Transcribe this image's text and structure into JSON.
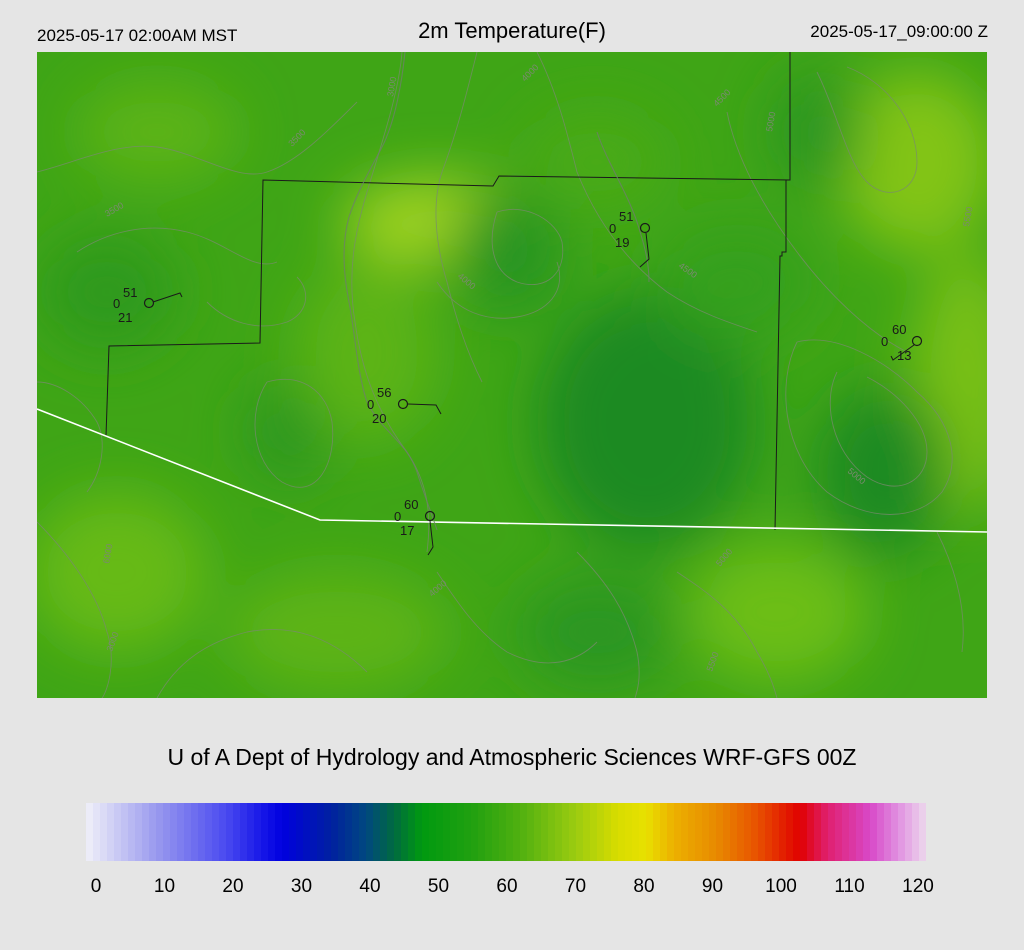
{
  "header": {
    "local_time": "2025-05-17 02:00AM MST",
    "title": "2m Temperature(F)",
    "valid_time": "2025-05-17_09:00:00 Z"
  },
  "map": {
    "variable": "2m Temperature",
    "units": "F",
    "field_colors": [
      "#1a8a1a",
      "#35a01a",
      "#4aae14",
      "#6cbc10",
      "#8ccc1c"
    ],
    "elevation_contour_labels": [
      "3000",
      "3500",
      "4000",
      "4500",
      "5000",
      "5500",
      "6000"
    ],
    "stations": [
      {
        "id": "st1",
        "temp": "51",
        "cloud": "0",
        "dew": "21"
      },
      {
        "id": "st2",
        "temp": "51",
        "cloud": "0",
        "dew": "19"
      },
      {
        "id": "st3",
        "temp": "56",
        "cloud": "0",
        "dew": "20"
      },
      {
        "id": "st4",
        "temp": "60",
        "cloud": "0",
        "dew": "17"
      },
      {
        "id": "st5",
        "temp": "60",
        "cloud": "0",
        "dew": "13"
      }
    ]
  },
  "credit": "U of A Dept of Hydrology and Atmospheric Sciences WRF-GFS 00Z",
  "colorbar": {
    "min": 0,
    "max": 120,
    "tick_labels": [
      "0",
      "10",
      "20",
      "30",
      "40",
      "50",
      "60",
      "70",
      "80",
      "90",
      "100",
      "110",
      "120"
    ],
    "color_stops": [
      {
        "value": 0,
        "color": "#f0f0f8"
      },
      {
        "value": 10,
        "color": "#9a9aee"
      },
      {
        "value": 20,
        "color": "#4a4af0"
      },
      {
        "value": 25,
        "color": "#1818e8"
      },
      {
        "value": 28,
        "color": "#0000e0"
      },
      {
        "value": 35,
        "color": "#0020a0"
      },
      {
        "value": 40,
        "color": "#004880"
      },
      {
        "value": 44,
        "color": "#006a40"
      },
      {
        "value": 48,
        "color": "#009a10"
      },
      {
        "value": 55,
        "color": "#20a010"
      },
      {
        "value": 62,
        "color": "#50b010"
      },
      {
        "value": 70,
        "color": "#9ccc10"
      },
      {
        "value": 76,
        "color": "#d8dc00"
      },
      {
        "value": 80,
        "color": "#e8e000"
      },
      {
        "value": 84,
        "color": "#ecb000"
      },
      {
        "value": 90,
        "color": "#e88a00"
      },
      {
        "value": 96,
        "color": "#e85000"
      },
      {
        "value": 102,
        "color": "#e00000"
      },
      {
        "value": 106,
        "color": "#e02070"
      },
      {
        "value": 112,
        "color": "#d848c8"
      },
      {
        "value": 116,
        "color": "#e090e0"
      },
      {
        "value": 120,
        "color": "#ecd8ec"
      }
    ]
  }
}
